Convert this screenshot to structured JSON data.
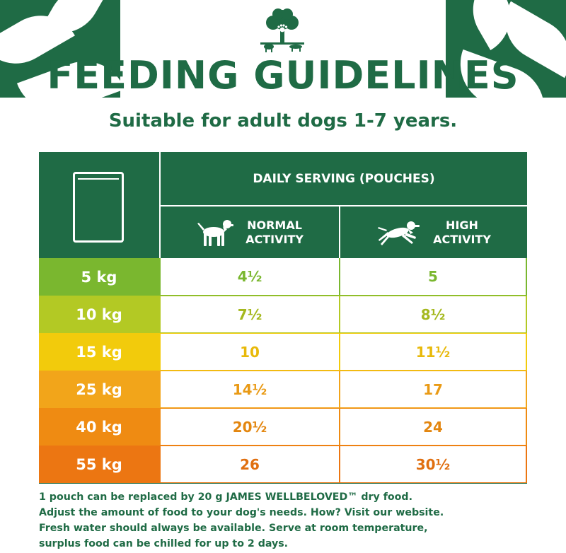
{
  "header": {
    "title": "FEEDING GUIDELINES",
    "subtitle": "Suitable for adult dogs 1-7 years."
  },
  "table": {
    "daily_serving_label": "DAILY SERVING (POUCHES)",
    "normal_label_line1": "NORMAL",
    "normal_label_line2": "ACTIVITY",
    "high_label_line1": "HIGH",
    "high_label_line2": "ACTIVITY",
    "rows": [
      {
        "weight": "5 kg",
        "normal": "4½",
        "high": "5",
        "color": "#7ab72f",
        "text_color": "#7ab72f"
      },
      {
        "weight": "10 kg",
        "normal": "7½",
        "high": "8½",
        "color": "#b3c924",
        "text_color": "#a5b81e"
      },
      {
        "weight": "15 kg",
        "normal": "10",
        "high": "11½",
        "color": "#f2cb0c",
        "text_color": "#e8b90a"
      },
      {
        "weight": "25 kg",
        "normal": "14½",
        "high": "17",
        "color": "#f2a51a",
        "text_color": "#e99a15"
      },
      {
        "weight": "40 kg",
        "normal": "20½",
        "high": "24",
        "color": "#ef8b12",
        "text_color": "#e3860f"
      },
      {
        "weight": "55 kg",
        "normal": "26",
        "high": "30½",
        "color": "#ec7612",
        "text_color": "#e06f10"
      }
    ]
  },
  "notes": [
    "1 pouch can be replaced by 20 g JAMES WELLBELOVED™ dry food.",
    "Adjust the amount of food to your dog's needs. How? Visit our website.",
    "Fresh water should always be available. Serve at room temperature,",
    "surplus food can be chilled for up to 2 days."
  ],
  "colors": {
    "brand_green": "#1f6b45",
    "logo_mark": "tree-with-animals-icon"
  }
}
